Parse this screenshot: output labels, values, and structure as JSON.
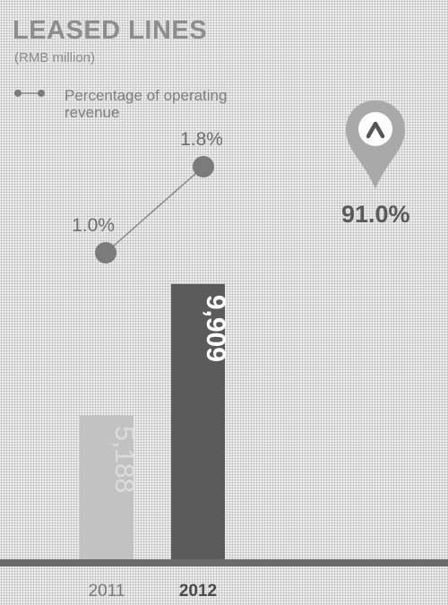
{
  "title": "LEASED LINES",
  "subtitle": "(RMB million)",
  "legend_label": "Percentage of operating revenue",
  "growth_badge": {
    "value": "91.0%",
    "icon": "caret-up-icon"
  },
  "colors": {
    "bar_2011": "#c2c2c2",
    "bar_2012": "#5b5b5b",
    "line": "#8a8a8a",
    "marker": "#7b7b7b",
    "baseline": "#6b6b6b",
    "badge": "#a9a9a9"
  },
  "chart_data": {
    "type": "bar",
    "title": "LEASED LINES",
    "subtitle": "(RMB million)",
    "categories": [
      "2011",
      "2012"
    ],
    "series": [
      {
        "type": "bar",
        "values": [
          5188,
          9909
        ],
        "labels": [
          "5,188",
          "9,909"
        ]
      },
      {
        "type": "line",
        "name": "Percentage of operating revenue",
        "values": [
          1.0,
          1.8
        ],
        "labels": [
          "1.0%",
          "1.8%"
        ]
      }
    ],
    "ylim": [
      0,
      10000
    ],
    "grid": false,
    "legend": "top-left"
  }
}
